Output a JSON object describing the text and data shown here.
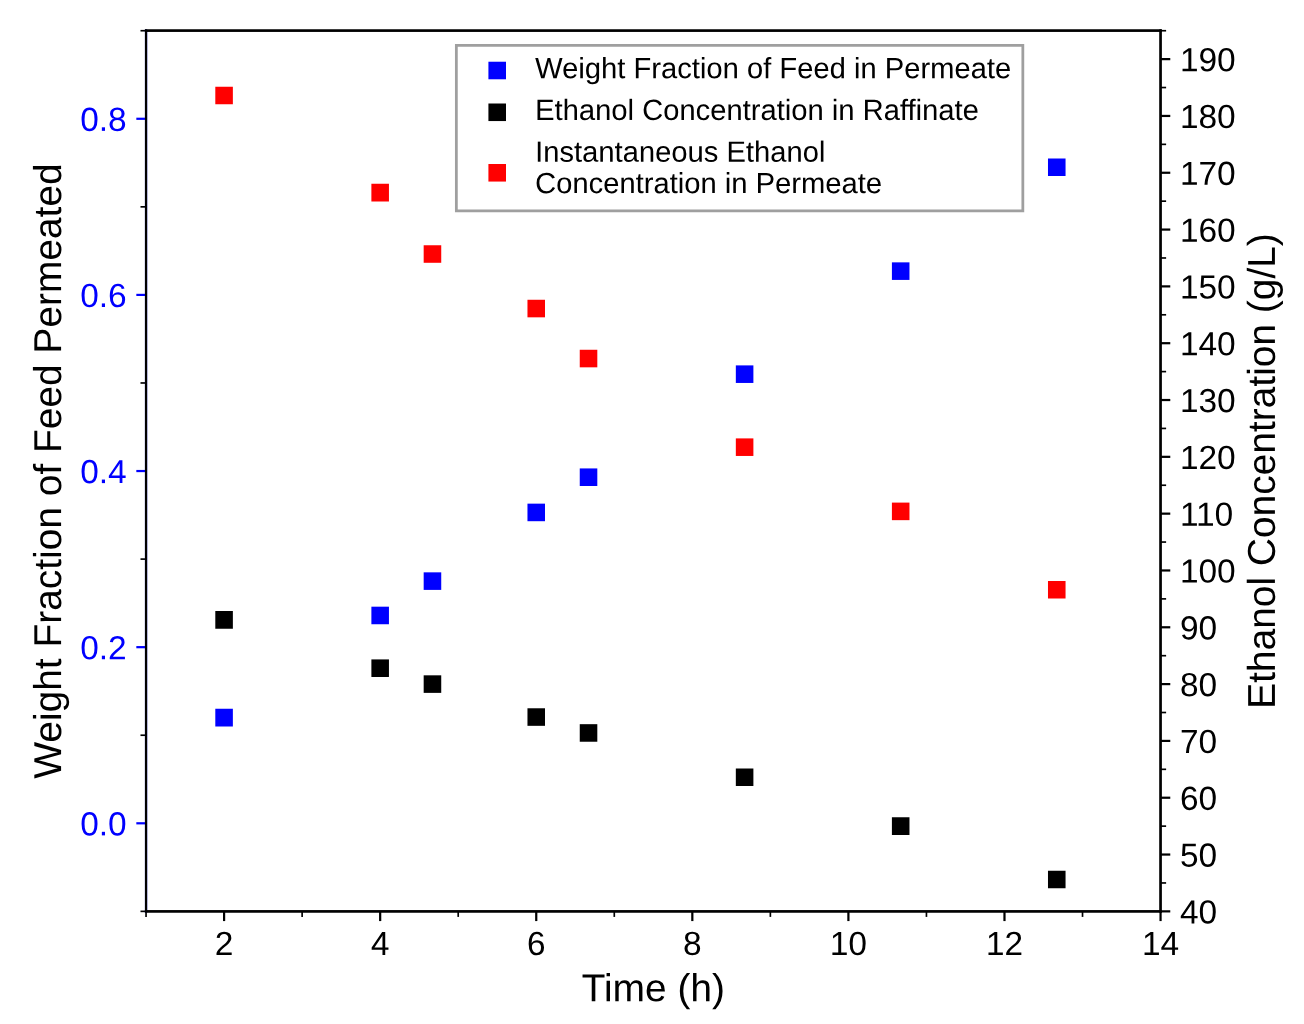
{
  "chart_data": {
    "type": "scatter",
    "xlabel": "Time (h)",
    "ylabel": "Weight Fraction of Feed Permeated",
    "y2label": "Ethanol Concentration (g/L)",
    "xlim": [
      1,
      14
    ],
    "xticks": [
      2,
      4,
      6,
      8,
      10,
      12,
      14
    ],
    "ylim": [
      -0.1,
      0.9
    ],
    "yticks": [
      {
        "value": 0,
        "label": "0.0"
      },
      0.2,
      0.4,
      0.6,
      0.8
    ],
    "y2lim": [
      40,
      195
    ],
    "y2ticks": [
      40,
      50,
      60,
      70,
      80,
      90,
      100,
      110,
      120,
      130,
      140,
      150,
      160,
      170,
      180,
      190
    ],
    "marker": "square",
    "grid": false,
    "legend": "top right",
    "series": [
      {
        "name": "Weight Fraction of Feed in Permeate",
        "color": "#0000ff",
        "x": [
          2,
          4,
          4.67,
          6,
          6.67,
          8.67,
          10.67,
          12.67
        ],
        "values": [
          0.12,
          0.236,
          0.275,
          0.353,
          0.393,
          0.51,
          0.627,
          0.745
        ]
      },
      {
        "name": "Ethanol Concentration in Raffinate",
        "color": "#000000",
        "axis": "y2",
        "x": [
          2,
          4,
          4.67,
          6,
          6.67,
          8.67,
          10.67,
          12.67
        ],
        "values": [
          91.3,
          82.8,
          80.0,
          74.2,
          71.4,
          63.6,
          55.0,
          45.6
        ]
      },
      {
        "name": "Instantaneous Ethanol\nConcentration in Permeate",
        "color": "#ff0000",
        "axis": "y2",
        "x": [
          2,
          4,
          4.67,
          6,
          6.67,
          8.67,
          10.67,
          12.67
        ],
        "values": [
          183.6,
          166.5,
          155.7,
          146.1,
          137.3,
          121.7,
          110.4,
          96.6
        ]
      }
    ]
  }
}
